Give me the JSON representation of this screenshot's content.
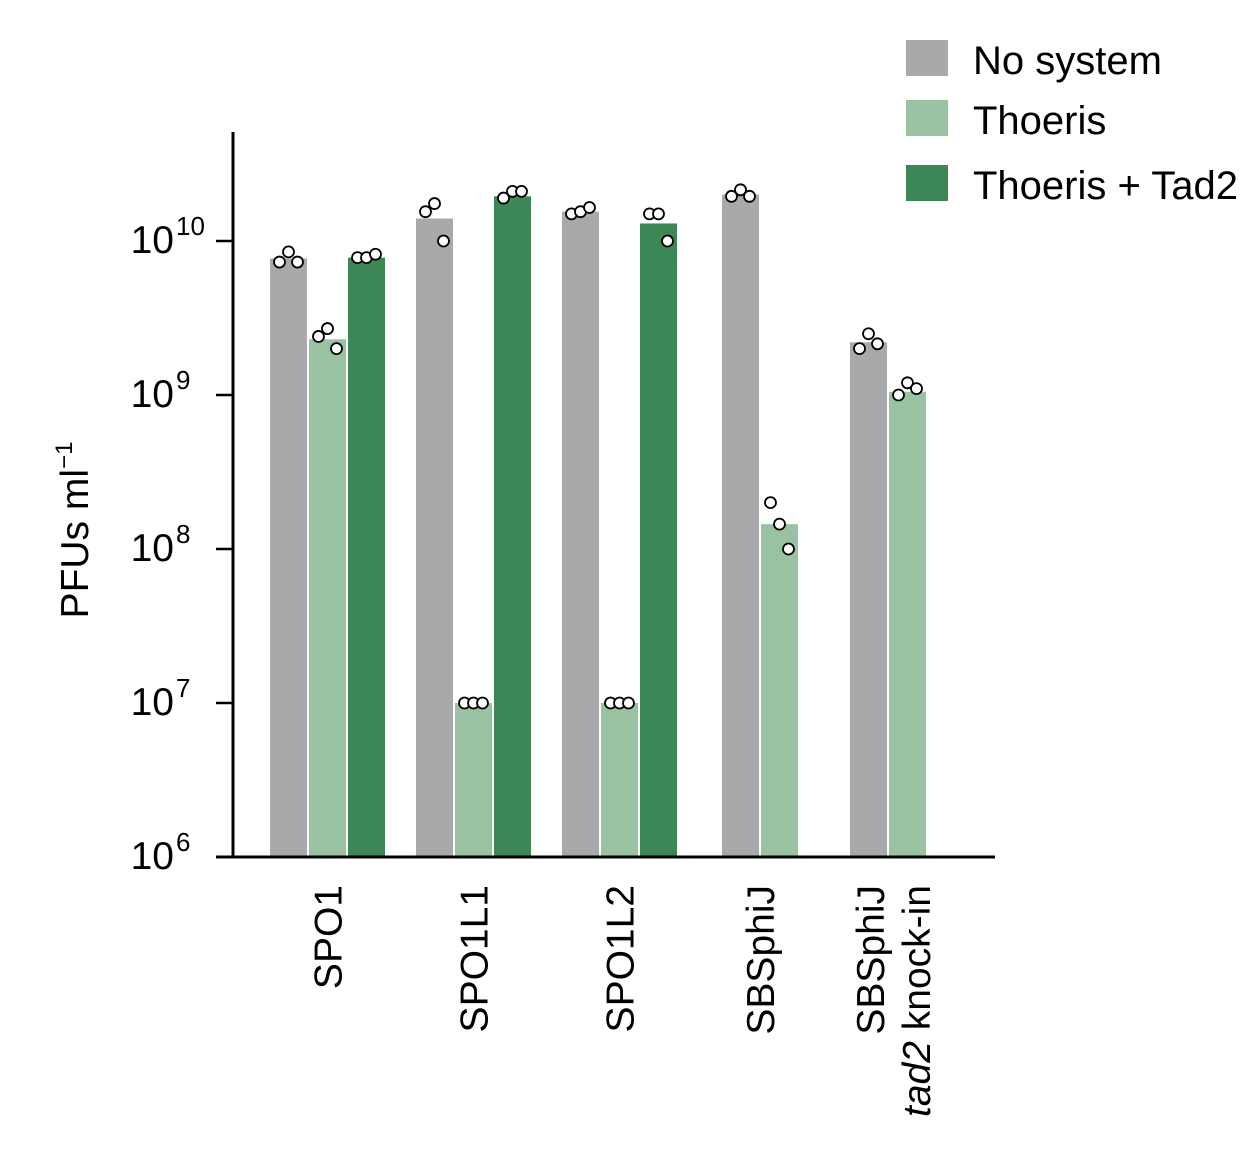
{
  "chart_data": {
    "type": "bar",
    "title": "",
    "xlabel": "",
    "ylabel": {
      "base": "PFUs ml",
      "sup": "−1"
    },
    "yscale": "log",
    "ylim": [
      1000000,
      50000000000
    ],
    "yticks": [
      {
        "base": "10",
        "exp": "6"
      },
      {
        "base": "10",
        "exp": "7"
      },
      {
        "base": "10",
        "exp": "8"
      },
      {
        "base": "10",
        "exp": "9"
      },
      {
        "base": "10",
        "exp": "10"
      }
    ],
    "categories": [
      {
        "label": "SPO1",
        "label_line2": ""
      },
      {
        "label": "SPO1L1",
        "label_line2": ""
      },
      {
        "label": "SPO1L2",
        "label_line2": ""
      },
      {
        "label": "SBSphiJ",
        "label_line2": ""
      },
      {
        "label": "SBSphiJ",
        "label_line2_italic": "tad2",
        "label_line2": " knock-in"
      }
    ],
    "legend_position": "top-right",
    "series": [
      {
        "name": "No system",
        "color": "#a8a9ab",
        "values": [
          7700000000,
          14000000000,
          15500000000,
          20000000000,
          2200000000
        ],
        "points": [
          [
            7300000000,
            8500000000,
            7300000000
          ],
          [
            15500000000,
            17500000000,
            10000000000
          ],
          [
            15000000000,
            15500000000,
            16500000000
          ],
          [
            19500000000,
            21500000000,
            19500000000
          ],
          [
            2000000000,
            2500000000,
            2150000000
          ]
        ]
      },
      {
        "name": "Thoeris",
        "color": "#98c2a2",
        "values": [
          2300000000,
          10000000,
          10000000,
          145000000,
          1050000000
        ],
        "points": [
          [
            2400000000,
            2700000000,
            2000000000
          ],
          [
            10000000,
            10000000,
            10000000
          ],
          [
            10000000,
            10000000,
            10000000
          ],
          [
            200000000,
            145000000,
            100000000
          ],
          [
            1000000000,
            1200000000,
            1100000000
          ]
        ]
      },
      {
        "name": "Thoeris + Tad2",
        "color": "#3d8655",
        "values": [
          7800000000,
          19500000000,
          13000000000,
          null,
          null
        ],
        "points": [
          [
            7800000000,
            7800000000,
            8200000000
          ],
          [
            19000000000,
            21000000000,
            21000000000
          ],
          [
            15000000000,
            15000000000,
            10000000000
          ],
          null,
          null
        ]
      }
    ]
  }
}
